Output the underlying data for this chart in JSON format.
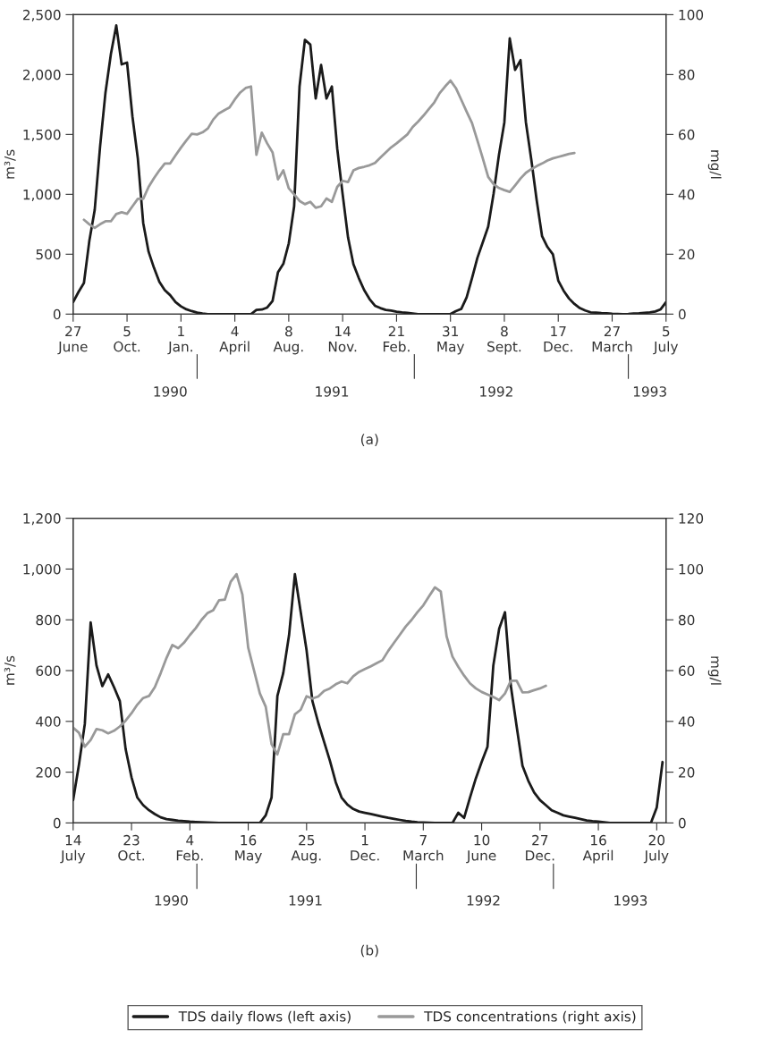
{
  "chart_data": [
    {
      "type": "line",
      "ylabel": "m³/s",
      "y2label": "mg/l",
      "annotations": [
        "(a)",
        "1990",
        "1991",
        "1992",
        "1993"
      ],
      "categories": [
        "27\nJune",
        null,
        null,
        null,
        null,
        null,
        null,
        null,
        null,
        null,
        "5\nOct.",
        null,
        null,
        null,
        null,
        null,
        null,
        null,
        null,
        null,
        "1\nJan.",
        null,
        null,
        null,
        null,
        null,
        null,
        null,
        null,
        null,
        "4\nApril",
        null,
        null,
        null,
        null,
        null,
        null,
        null,
        null,
        null,
        "8\nAug.",
        null,
        null,
        null,
        null,
        null,
        null,
        null,
        null,
        null,
        "14\nNov.",
        null,
        null,
        null,
        null,
        null,
        null,
        null,
        null,
        null,
        "21\nFeb.",
        null,
        null,
        null,
        null,
        null,
        null,
        null,
        null,
        null,
        "31\nMay",
        null,
        null,
        null,
        null,
        null,
        null,
        null,
        null,
        null,
        "8\nSept.",
        null,
        null,
        null,
        null,
        null,
        null,
        null,
        null,
        null,
        "17\nDec.",
        null,
        null,
        null,
        null,
        null,
        null,
        null,
        null,
        null,
        "27\nMarch",
        null,
        null,
        null,
        null,
        null,
        null,
        null,
        null,
        null,
        "5\nJuly"
      ],
      "ylim": [
        0,
        2500
      ],
      "yticks": [
        0,
        500,
        {
          "value": 1000,
          "label": "1,000"
        },
        {
          "value": 1500,
          "label": "1,500"
        },
        {
          "value": 2000,
          "label": "2,000"
        },
        {
          "value": 2500,
          "label": "2,500"
        }
      ],
      "y2lim": [
        0,
        100
      ],
      "y2ticks": [
        0,
        20,
        40,
        60,
        80,
        100
      ],
      "grid": false,
      "legend": false,
      "line_style": "solid",
      "marker": "none",
      "series": [
        {
          "color": "#1a1a1a",
          "values": [
            100,
            185,
            260,
            610,
            870,
            1400,
            1850,
            2170,
            2410,
            2085,
            2100,
            1650,
            1300,
            760,
            520,
            386,
            270,
            200,
            158,
            100,
            65,
            40,
            25,
            12,
            5,
            0,
            0,
            0,
            0,
            0,
            0,
            0,
            0,
            0,
            35,
            38,
            55,
            110,
            350,
            420,
            590,
            900,
            1900,
            2290,
            2250,
            1800,
            2080,
            1800,
            1900,
            1380,
            1000,
            640,
            417,
            300,
            200,
            125,
            70,
            50,
            35,
            30,
            20,
            14,
            10,
            5,
            0,
            0,
            0,
            0,
            0,
            0,
            0,
            25,
            43,
            139,
            300,
            470,
            600,
            730,
            1004,
            1330,
            1600,
            2302,
            2039,
            2120,
            1600,
            1290,
            950,
            650,
            560,
            500,
            280,
            195,
            130,
            85,
            50,
            30,
            15,
            12,
            8,
            6,
            3,
            2,
            0,
            2,
            5,
            6,
            10,
            14,
            22,
            40,
            100
          ]
        },
        {
          "color": "#999999",
          "axis": "y2",
          "values": [
            null,
            null,
            31.5,
            30,
            28.8,
            30.0,
            31,
            31,
            33.4,
            34,
            33.5,
            36,
            38.5,
            38.5,
            42.5,
            45.4,
            48,
            50.3,
            50.3,
            53,
            55.6,
            58,
            60.2,
            60.0,
            60.7,
            62,
            65,
            67,
            68,
            69,
            71.7,
            74,
            75.5,
            76.0,
            53.2,
            60.6,
            57,
            54,
            45,
            48,
            42,
            40,
            37.8,
            36.7,
            37.5,
            35.5,
            36,
            38.6,
            37.5,
            42.5,
            44.5,
            44.1,
            48,
            48.8,
            49.2,
            49.7,
            50.5,
            52.3,
            54,
            55.7,
            57,
            58.5,
            60,
            62.5,
            64.3,
            66.3,
            68.5,
            70.7,
            73.8,
            76,
            78,
            75.5,
            71.6,
            67.6,
            63.8,
            58,
            52,
            45.8,
            43.4,
            42.1,
            41.4,
            40.8,
            43,
            45.3,
            47.2,
            48.4,
            49.4,
            50.3,
            51.3,
            52,
            52.5,
            53,
            53.5,
            53.8,
            null,
            null,
            null,
            null,
            null,
            null,
            null,
            null,
            null,
            null,
            null,
            null,
            null,
            null,
            null,
            null,
            null
          ]
        }
      ]
    },
    {
      "type": "line",
      "ylabel": "m³/s",
      "y2label": "mg/l",
      "annotations": [
        "(b)",
        "1990",
        "1991",
        "1992",
        "1993"
      ],
      "categories": [
        "14\nJuly",
        null,
        null,
        null,
        null,
        null,
        null,
        null,
        null,
        null,
        "23\nOct.",
        null,
        null,
        null,
        null,
        null,
        null,
        null,
        null,
        null,
        "4\nFeb.",
        null,
        null,
        null,
        null,
        null,
        null,
        null,
        null,
        null,
        "16\nMay",
        null,
        null,
        null,
        null,
        null,
        null,
        null,
        null,
        null,
        "25\nAug.",
        null,
        null,
        null,
        null,
        null,
        null,
        null,
        null,
        null,
        "1\nDec.",
        null,
        null,
        null,
        null,
        null,
        null,
        null,
        null,
        null,
        "7\nMarch",
        null,
        null,
        null,
        null,
        null,
        null,
        null,
        null,
        null,
        "10\nJune",
        null,
        null,
        null,
        null,
        null,
        null,
        null,
        null,
        null,
        "27\nDec.",
        null,
        null,
        null,
        null,
        null,
        null,
        null,
        null,
        null,
        "16\nApril",
        null,
        null,
        null,
        null,
        null,
        null,
        null,
        null,
        null,
        "20\nJuly",
        null
      ],
      "ylim": [
        0,
        1200
      ],
      "yticks": [
        0,
        200,
        400,
        600,
        800,
        {
          "value": 1000,
          "label": "1,000"
        },
        {
          "value": 1200,
          "label": "1,200"
        }
      ],
      "y2lim": [
        0,
        120
      ],
      "y2ticks": [
        0,
        20,
        40,
        60,
        80,
        100,
        120
      ],
      "grid": false,
      "legend": "bottom",
      "line_style": "solid",
      "marker": "none",
      "series": [
        {
          "name": "TDS daily flows (left axis)",
          "color": "#1a1a1a",
          "values": [
            90,
            230,
            390,
            790,
            620,
            539,
            585,
            535,
            480,
            290,
            180,
            100,
            70,
            50,
            35,
            22,
            15,
            12,
            9,
            7,
            5,
            4,
            3,
            2,
            1,
            0,
            0,
            0,
            0,
            0,
            0,
            0,
            0,
            30,
            100,
            500,
            590,
            740,
            980,
            830,
            680,
            480,
            395,
            320,
            245,
            160,
            100,
            72,
            55,
            45,
            40,
            35,
            30,
            25,
            20,
            16,
            12,
            8,
            5,
            3,
            2,
            1,
            0,
            0,
            0,
            0,
            40,
            20,
            100,
            175,
            240,
            300,
            620,
            765,
            830,
            540,
            380,
            225,
            166,
            120,
            90,
            70,
            50,
            40,
            30,
            25,
            20,
            15,
            10,
            7,
            5,
            3,
            0,
            0,
            0,
            0,
            0,
            0,
            0,
            0,
            60,
            240
          ]
        },
        {
          "name": "TDS concentrations (right axis)",
          "color": "#999999",
          "axis": "y2",
          "values": [
            37.5,
            35.5,
            30,
            32.7,
            37,
            36.5,
            35.3,
            36.3,
            38,
            40.3,
            43.2,
            46.6,
            49.2,
            50,
            53.5,
            59,
            65,
            70.1,
            68.8,
            71,
            74,
            76.7,
            80,
            82.6,
            83.8,
            87.7,
            88,
            95,
            98,
            90,
            69,
            60,
            51,
            45.8,
            31,
            27,
            35,
            35,
            42.8,
            44.6,
            49.9,
            49,
            49.8,
            52,
            53,
            54.6,
            55.7,
            55,
            57.8,
            59.5,
            60.6,
            61.7,
            62.9,
            64.1,
            67.8,
            71,
            74.2,
            77.4,
            80,
            83,
            85.7,
            89.3,
            92.8,
            91.1,
            73.4,
            65.5,
            61.5,
            58,
            55,
            53,
            51.6,
            50.6,
            49.6,
            48.4,
            51,
            56,
            56,
            51.4,
            51.5,
            52.3,
            53,
            54,
            null,
            null,
            null,
            null,
            null,
            null,
            null,
            null,
            null,
            null,
            null,
            null,
            null,
            null,
            null,
            null,
            null,
            null,
            null,
            null
          ]
        }
      ]
    }
  ]
}
